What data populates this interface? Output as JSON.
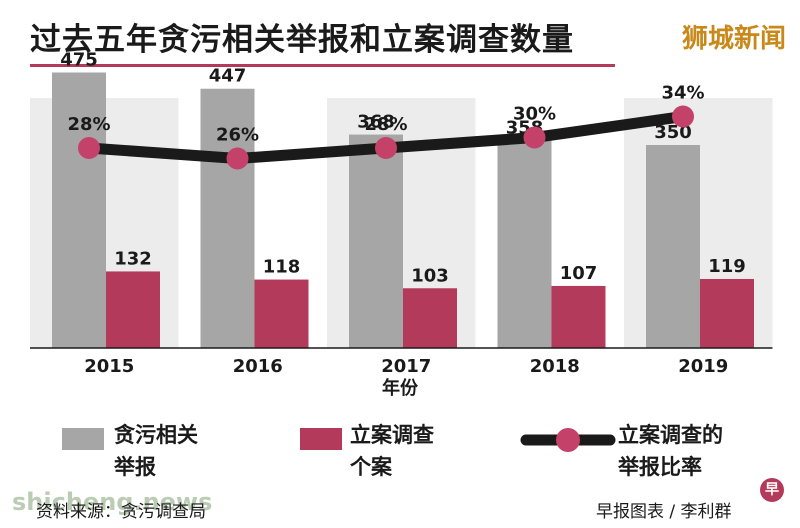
{
  "header": {
    "title": "过去五年贪污相关举报和立案调查数量",
    "brand": "狮城新闻"
  },
  "chart_data": {
    "type": "bar",
    "title": "过去五年贪污相关举报和立案调查数量",
    "xlabel": "年份",
    "ylabel": "",
    "categories": [
      "2015",
      "2016",
      "2017",
      "2018",
      "2019"
    ],
    "series": [
      {
        "name": "贪污相关举报",
        "type": "bar",
        "values": [
          475,
          447,
          368,
          358,
          350
        ],
        "color": "#a6a6a6"
      },
      {
        "name": "立案调查个案",
        "type": "bar",
        "values": [
          132,
          118,
          103,
          107,
          119
        ],
        "color": "#b43a5c"
      },
      {
        "name": "立案调查的举报比率",
        "type": "line",
        "values": [
          28,
          26,
          28,
          30,
          34
        ],
        "labels": [
          "28%",
          "26%",
          "28%",
          "30%",
          "34%"
        ],
        "line_color": "#1a1a1a",
        "marker_color": "#c4416a"
      }
    ],
    "ylim": [
      0,
      500
    ],
    "grid": false,
    "legend_position": "bottom"
  },
  "legend": [
    {
      "label_line1": "贪污相关",
      "label_line2": "举报"
    },
    {
      "label_line1": "立案调查",
      "label_line2": "个案"
    },
    {
      "label_line1": "立案调查的",
      "label_line2": "举报比率"
    }
  ],
  "footer": {
    "source": "资料来源：贪污调查局",
    "credit": "早报图表 / 李利群",
    "watermark": "shicheng.news",
    "logo_glyph": "早"
  }
}
